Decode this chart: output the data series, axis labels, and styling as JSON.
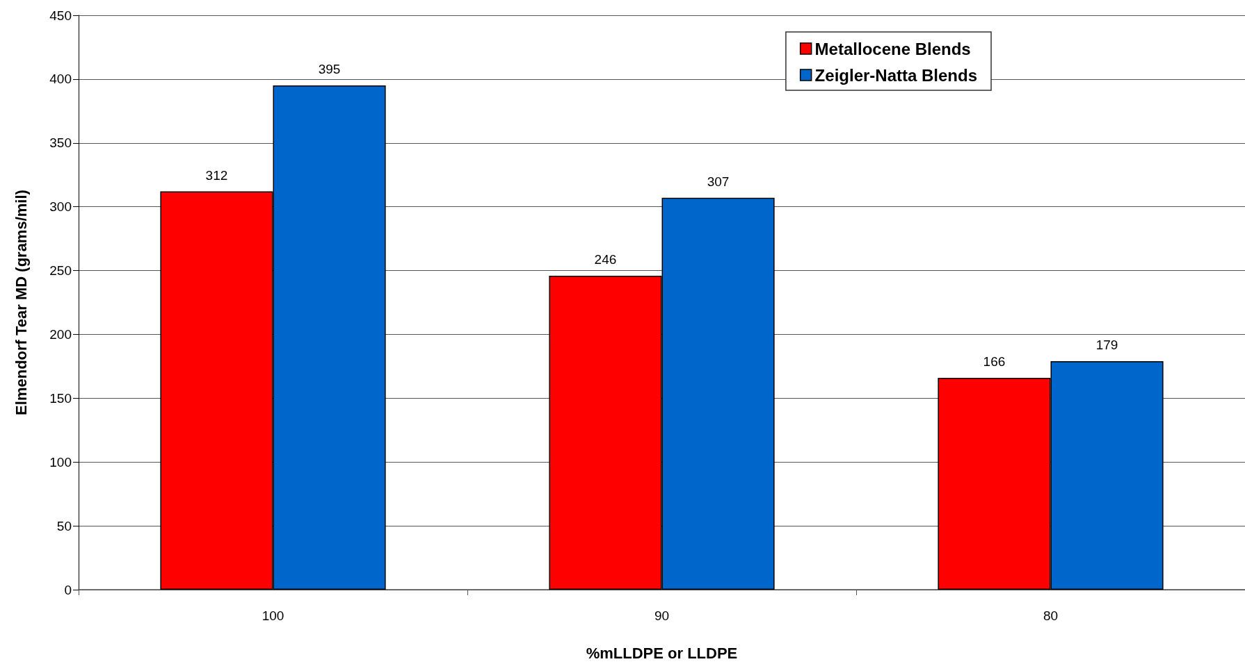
{
  "chart_data": {
    "type": "bar",
    "xlabel": "%mLLDPE or LLDPE",
    "ylabel": "Elmendorf Tear MD (grams/mil)",
    "categories": [
      "100",
      "90",
      "80"
    ],
    "series": [
      {
        "name": "Metallocene Blends",
        "color": "#ff0000",
        "values": [
          312,
          246,
          166
        ]
      },
      {
        "name": "Zeigler-Natta Blends",
        "color": "#0066cc",
        "values": [
          395,
          307,
          179
        ]
      }
    ],
    "ylim": [
      0,
      450
    ],
    "yticks": [
      0,
      50,
      100,
      150,
      200,
      250,
      300,
      350,
      400,
      450
    ],
    "grid": "y",
    "legend": "top right",
    "data_labels": true
  }
}
